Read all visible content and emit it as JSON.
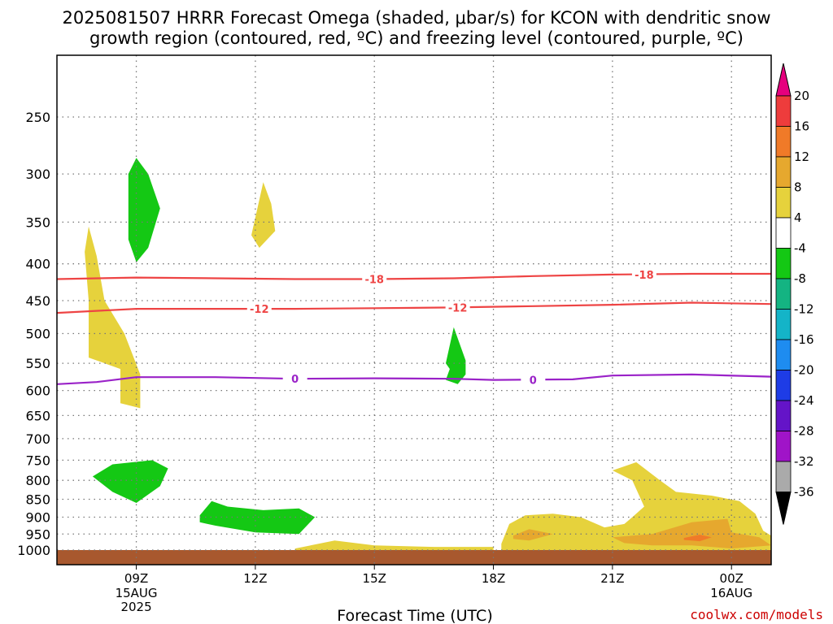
{
  "chart_data": {
    "type": "time-height cross section",
    "title_line1": "2025081507 HRRR Forecast Omega (shaded, μbar/s) for KCON with dendritic snow",
    "title_line2": "growth region (contoured, red, ºC) and freezing level (contoured, purple, ºC)",
    "xlabel": "Forecast Time (UTC)",
    "ylabel": "",
    "y_ticks": [
      "250",
      "300",
      "350",
      "400",
      "450",
      "500",
      "550",
      "600",
      "650",
      "700",
      "750",
      "800",
      "850",
      "900",
      "950",
      "1000"
    ],
    "y_tick_values": [
      250,
      300,
      350,
      400,
      450,
      500,
      550,
      600,
      650,
      700,
      750,
      800,
      850,
      900,
      950,
      1000
    ],
    "ylim": [
      200,
      1030
    ],
    "y_scale": "log-pressure",
    "x_ticks": [
      {
        "hours": 2,
        "label": "09Z",
        "sub1": "15AUG",
        "sub2": "2025"
      },
      {
        "hours": 5,
        "label": "12Z",
        "sub1": "",
        "sub2": ""
      },
      {
        "hours": 8,
        "label": "15Z",
        "sub1": "",
        "sub2": ""
      },
      {
        "hours": 11,
        "label": "18Z",
        "sub1": "",
        "sub2": ""
      },
      {
        "hours": 14,
        "label": "21Z",
        "sub1": "",
        "sub2": ""
      },
      {
        "hours": 17,
        "label": "00Z",
        "sub1": "16AUG",
        "sub2": ""
      }
    ],
    "xlim_hours": [
      0,
      18
    ],
    "grid": true,
    "colorbar": {
      "labels": [
        "20",
        "16",
        "12",
        "8",
        "4",
        "-4",
        "-8",
        "-12",
        "-16",
        "-20",
        "-24",
        "-28",
        "-32",
        "-36"
      ],
      "colors": [
        "#e6007e",
        "#ee3c3c",
        "#f07a28",
        "#e6a82e",
        "#e6d23c",
        "#ffffff",
        "#14c814",
        "#14b482",
        "#14b4c8",
        "#1e8cf0",
        "#1e3ce6",
        "#6414c8",
        "#a014c8",
        "#aaaaaa",
        "#000000"
      ]
    },
    "contours": [
      {
        "name": "-18",
        "color": "#ee4444",
        "label": "-18",
        "points": [
          [
            0,
            420
          ],
          [
            2,
            418
          ],
          [
            4,
            419
          ],
          [
            6,
            420
          ],
          [
            8,
            420
          ],
          [
            10,
            419
          ],
          [
            12,
            416
          ],
          [
            14,
            414
          ],
          [
            16,
            413
          ],
          [
            18,
            413
          ]
        ],
        "label_at": [
          [
            8,
            420
          ],
          [
            14.8,
            414
          ]
        ]
      },
      {
        "name": "-12",
        "color": "#ee4444",
        "label": "-12",
        "points": [
          [
            0,
            468
          ],
          [
            2,
            462
          ],
          [
            4,
            462
          ],
          [
            6,
            462
          ],
          [
            8,
            461
          ],
          [
            10,
            460
          ],
          [
            12,
            458
          ],
          [
            14,
            456
          ],
          [
            16,
            453
          ],
          [
            18,
            455
          ]
        ],
        "label_at": [
          [
            5.1,
            462
          ],
          [
            10.1,
            460
          ]
        ]
      },
      {
        "name": "0",
        "color": "#9a22c8",
        "label": "0",
        "points": [
          [
            0,
            588
          ],
          [
            1,
            584
          ],
          [
            2,
            575
          ],
          [
            4,
            575
          ],
          [
            6,
            578
          ],
          [
            8,
            577
          ],
          [
            10,
            578
          ],
          [
            11,
            580
          ],
          [
            13,
            579
          ],
          [
            14,
            572
          ],
          [
            16,
            570
          ],
          [
            18,
            574
          ]
        ],
        "label_at": [
          [
            6,
            578
          ],
          [
            12,
            580
          ]
        ]
      }
    ],
    "shaded_regions": [
      {
        "value_class": "-8",
        "color": "#14c814",
        "points": [
          [
            1.8,
            300
          ],
          [
            2.0,
            285
          ],
          [
            2.3,
            300
          ],
          [
            2.6,
            335
          ],
          [
            2.3,
            380
          ],
          [
            2.0,
            398
          ],
          [
            1.8,
            370
          ]
        ]
      },
      {
        "value_class": "4",
        "color": "#e6d23c",
        "points": [
          [
            5.0,
            345
          ],
          [
            5.2,
            308
          ],
          [
            5.4,
            330
          ],
          [
            5.5,
            360
          ],
          [
            5.1,
            380
          ],
          [
            4.9,
            365
          ]
        ]
      },
      {
        "value_class": "4",
        "color": "#e6d23c",
        "points": [
          [
            0.7,
            385
          ],
          [
            0.8,
            355
          ],
          [
            1.0,
            390
          ],
          [
            1.2,
            450
          ],
          [
            1.7,
            500
          ],
          [
            2.1,
            570
          ],
          [
            2.1,
            635
          ],
          [
            1.6,
            625
          ],
          [
            1.6,
            560
          ],
          [
            1.2,
            550
          ],
          [
            0.8,
            540
          ],
          [
            0.8,
            450
          ]
        ]
      },
      {
        "value_class": "-8",
        "color": "#14c814",
        "points": [
          [
            9.8,
            550
          ],
          [
            10.0,
            490
          ],
          [
            10.3,
            545
          ],
          [
            10.3,
            570
          ],
          [
            10.1,
            588
          ],
          [
            9.8,
            580
          ],
          [
            9.9,
            560
          ]
        ]
      },
      {
        "value_class": "-8",
        "color": "#14c814",
        "points": [
          [
            0.9,
            790
          ],
          [
            1.4,
            760
          ],
          [
            2.4,
            750
          ],
          [
            2.8,
            770
          ],
          [
            2.6,
            815
          ],
          [
            2.0,
            860
          ],
          [
            1.4,
            830
          ]
        ]
      },
      {
        "value_class": "-8",
        "color": "#14c814",
        "points": [
          [
            3.6,
            895
          ],
          [
            3.9,
            855
          ],
          [
            4.3,
            870
          ],
          [
            5.2,
            880
          ],
          [
            6.1,
            875
          ],
          [
            6.5,
            900
          ],
          [
            6.1,
            950
          ],
          [
            5.0,
            945
          ],
          [
            4.0,
            925
          ],
          [
            3.6,
            915
          ]
        ]
      },
      {
        "value_class": "4",
        "color": "#e6d23c",
        "points": [
          [
            11.2,
            980
          ],
          [
            11.4,
            920
          ],
          [
            11.8,
            895
          ],
          [
            12.5,
            890
          ],
          [
            13.2,
            900
          ],
          [
            13.8,
            930
          ],
          [
            14.3,
            920
          ],
          [
            14.5,
            900
          ],
          [
            14.8,
            870
          ],
          [
            14.5,
            800
          ],
          [
            14.0,
            775
          ],
          [
            14.6,
            755
          ],
          [
            15.2,
            800
          ],
          [
            15.6,
            830
          ],
          [
            16.5,
            840
          ],
          [
            17.2,
            855
          ],
          [
            17.6,
            890
          ],
          [
            17.8,
            940
          ],
          [
            18,
            955
          ],
          [
            18,
            1000
          ],
          [
            11.2,
            1000
          ]
        ]
      },
      {
        "value_class": "4",
        "color": "#e6d23c",
        "points": [
          [
            6,
            995
          ],
          [
            7,
            970
          ],
          [
            8,
            985
          ],
          [
            9.5,
            990
          ],
          [
            11,
            990
          ],
          [
            11,
            1000
          ],
          [
            6,
            1000
          ]
        ]
      },
      {
        "value_class": "8",
        "color": "#e6a82e",
        "points": [
          [
            14.0,
            960
          ],
          [
            15,
            950
          ],
          [
            16,
            915
          ],
          [
            16.9,
            905
          ],
          [
            17,
            945
          ],
          [
            17.7,
            960
          ],
          [
            18,
            985
          ],
          [
            17,
            995
          ],
          [
            16,
            985
          ],
          [
            15,
            985
          ],
          [
            14.3,
            978
          ]
        ]
      },
      {
        "value_class": "8",
        "color": "#e6a82e",
        "points": [
          [
            11.5,
            955
          ],
          [
            11.9,
            935
          ],
          [
            12.5,
            950
          ],
          [
            11.9,
            970
          ],
          [
            11.5,
            965
          ]
        ]
      },
      {
        "value_class": "12",
        "color": "#f07a28",
        "points": [
          [
            15.8,
            962
          ],
          [
            16.2,
            952
          ],
          [
            16.5,
            960
          ],
          [
            16.2,
            972
          ],
          [
            15.8,
            968
          ]
        ]
      }
    ],
    "terrain": {
      "color": "#a8582e",
      "from_pressure": 1000
    }
  },
  "credit": "coolwx.com/models"
}
